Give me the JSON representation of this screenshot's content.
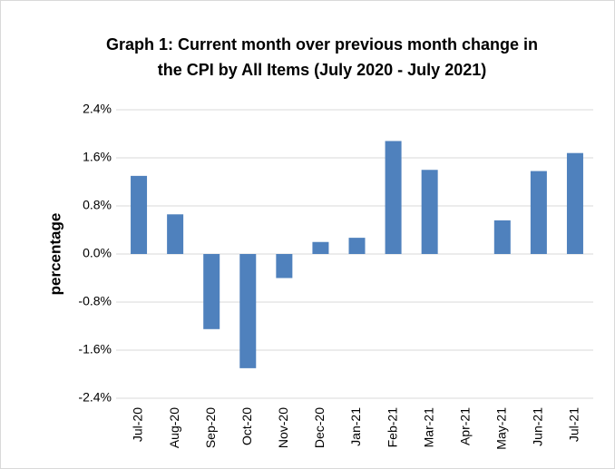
{
  "chart_data": {
    "type": "bar",
    "title": [
      "Graph 1: Current month over previous month change in",
      "the CPI by All Items (July 2020 - July 2021)"
    ],
    "y_label": "percentage",
    "categories": [
      "Jul-20",
      "Aug-20",
      "Sep-20",
      "Oct-20",
      "Nov-20",
      "Dec-20",
      "Jan-21",
      "Feb-21",
      "Mar-21",
      "Apr-21",
      "May-21",
      "Jun-21",
      "Jul-21"
    ],
    "values": [
      1.3,
      0.66,
      -1.25,
      -1.9,
      -0.4,
      0.2,
      0.27,
      1.88,
      1.4,
      0,
      0.56,
      1.38,
      1.68
    ],
    "color": "#4f81bd",
    "ylim": [
      -2.4,
      2.4
    ],
    "yticks": [
      {
        "value": -2.4,
        "label": "-2.4%"
      },
      {
        "value": -1.6,
        "label": "-1.6%"
      },
      {
        "value": -0.8,
        "label": "-0.8%"
      },
      {
        "value": 0,
        "label": "0.0%"
      },
      {
        "value": 0.8,
        "label": "0.8%"
      },
      {
        "value": 1.6,
        "label": "1.6%"
      },
      {
        "value": 2.4,
        "label": "2.4%"
      }
    ],
    "grid": true
  }
}
